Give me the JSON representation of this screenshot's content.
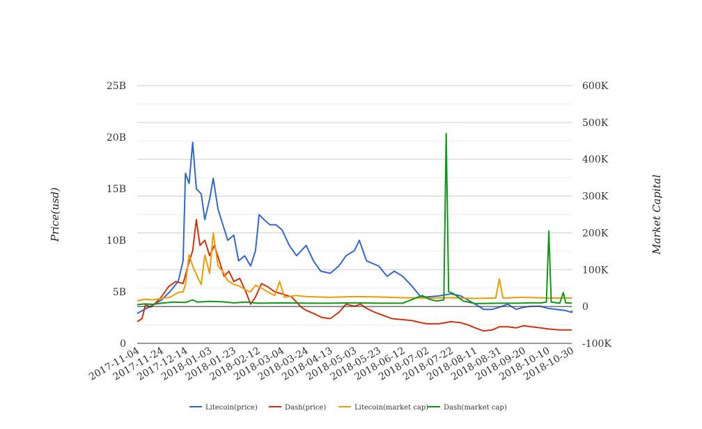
{
  "chart_data": {
    "type": "line",
    "title": "",
    "ylabel_left": "Price(usd)",
    "ylabel_right": "Market Capital",
    "x_tick_labels": [
      "2017-11-04",
      "2017-11-24",
      "2017-12-14",
      "2018-01-03",
      "2018-01-23",
      "2018-02-12",
      "2018-03-04",
      "2018-03-24",
      "2018-04-13",
      "2018-05-03",
      "2018-05-23",
      "2018-06-12",
      "2018-07-02",
      "2018-07-22",
      "2018-08-11",
      "2018-08-31",
      "2018-09-20",
      "2018-10-10",
      "2018-10-30"
    ],
    "x_range": [
      "2017-11-04",
      "2018-10-30"
    ],
    "y_left": {
      "ticks": [
        "0",
        "5B",
        "10B",
        "15B",
        "20B",
        "25B"
      ],
      "min": 0,
      "max": 25000000000
    },
    "y_right": {
      "ticks": [
        "-100K",
        "0",
        "100K",
        "200K",
        "300K",
        "400K",
        "500K",
        "600K"
      ],
      "min": -100000,
      "max": 600000
    },
    "grid": true,
    "legend_position": "bottom",
    "series": [
      {
        "name": "Litecoin(price)",
        "color": "#3366cc",
        "axis": "left",
        "points": [
          [
            "2017-11-04",
            2900000000.0
          ],
          [
            "2017-11-10",
            3300000000.0
          ],
          [
            "2017-11-17",
            3700000000.0
          ],
          [
            "2017-11-24",
            4200000000.0
          ],
          [
            "2017-12-01",
            5000000000.0
          ],
          [
            "2017-12-08",
            6000000000.0
          ],
          [
            "2017-12-12",
            8000000000.0
          ],
          [
            "2017-12-14",
            16500000000.0
          ],
          [
            "2017-12-17",
            15500000000.0
          ],
          [
            "2017-12-20",
            19500000000.0
          ],
          [
            "2017-12-23",
            15000000000.0
          ],
          [
            "2017-12-27",
            14500000000.0
          ],
          [
            "2017-12-30",
            12000000000.0
          ],
          [
            "2018-01-03",
            14000000000.0
          ],
          [
            "2018-01-06",
            16000000000.0
          ],
          [
            "2018-01-10",
            13000000000.0
          ],
          [
            "2018-01-14",
            11500000000.0
          ],
          [
            "2018-01-18",
            10000000000.0
          ],
          [
            "2018-01-23",
            10500000000.0
          ],
          [
            "2018-01-27",
            8000000000.0
          ],
          [
            "2018-02-01",
            8500000000.0
          ],
          [
            "2018-02-06",
            7500000000.0
          ],
          [
            "2018-02-10",
            9000000000.0
          ],
          [
            "2018-02-13",
            12500000000.0
          ],
          [
            "2018-02-17",
            12000000000.0
          ],
          [
            "2018-02-22",
            11500000000.0
          ],
          [
            "2018-02-27",
            11500000000.0
          ],
          [
            "2018-03-04",
            11000000000.0
          ],
          [
            "2018-03-10",
            9500000000.0
          ],
          [
            "2018-03-16",
            8500000000.0
          ],
          [
            "2018-03-24",
            9500000000.0
          ],
          [
            "2018-03-30",
            8000000000.0
          ],
          [
            "2018-04-05",
            7000000000.0
          ],
          [
            "2018-04-13",
            6800000000.0
          ],
          [
            "2018-04-20",
            7500000000.0
          ],
          [
            "2018-04-26",
            8500000000.0
          ],
          [
            "2018-05-03",
            9000000000.0
          ],
          [
            "2018-05-07",
            10000000000.0
          ],
          [
            "2018-05-13",
            8000000000.0
          ],
          [
            "2018-05-23",
            7500000000.0
          ],
          [
            "2018-05-30",
            6500000000.0
          ],
          [
            "2018-06-05",
            7000000000.0
          ],
          [
            "2018-06-12",
            6500000000.0
          ],
          [
            "2018-06-20",
            5500000000.0
          ],
          [
            "2018-06-27",
            4500000000.0
          ],
          [
            "2018-07-02",
            4500000000.0
          ],
          [
            "2018-07-12",
            4600000000.0
          ],
          [
            "2018-07-22",
            4800000000.0
          ],
          [
            "2018-07-30",
            4600000000.0
          ],
          [
            "2018-08-05",
            4200000000.0
          ],
          [
            "2018-08-11",
            3800000000.0
          ],
          [
            "2018-08-18",
            3300000000.0
          ],
          [
            "2018-08-25",
            3300000000.0
          ],
          [
            "2018-08-31",
            3500000000.0
          ],
          [
            "2018-09-07",
            3800000000.0
          ],
          [
            "2018-09-14",
            3300000000.0
          ],
          [
            "2018-09-20",
            3500000000.0
          ],
          [
            "2018-09-27",
            3600000000.0
          ],
          [
            "2018-10-04",
            3600000000.0
          ],
          [
            "2018-10-10",
            3400000000.0
          ],
          [
            "2018-10-17",
            3300000000.0
          ],
          [
            "2018-10-24",
            3200000000.0
          ],
          [
            "2018-10-30",
            3000000000.0
          ],
          [
            "2018-11-01",
            3200000000.0
          ]
        ]
      },
      {
        "name": "Dash(price)",
        "color": "#cc3311",
        "axis": "left",
        "points": [
          [
            "2017-11-04",
            2100000000.0
          ],
          [
            "2017-11-08",
            2400000000.0
          ],
          [
            "2017-11-11",
            3800000000.0
          ],
          [
            "2017-11-15",
            3500000000.0
          ],
          [
            "2017-11-20",
            4000000000.0
          ],
          [
            "2017-11-24",
            4500000000.0
          ],
          [
            "2017-11-30",
            5500000000.0
          ],
          [
            "2017-12-06",
            6000000000.0
          ],
          [
            "2017-12-12",
            5800000000.0
          ],
          [
            "2017-12-16",
            7500000000.0
          ],
          [
            "2017-12-20",
            9000000000.0
          ],
          [
            "2017-12-23",
            12000000000.0
          ],
          [
            "2017-12-26",
            9500000000.0
          ],
          [
            "2017-12-30",
            10000000000.0
          ],
          [
            "2018-01-03",
            8500000000.0
          ],
          [
            "2018-01-07",
            9500000000.0
          ],
          [
            "2018-01-11",
            8000000000.0
          ],
          [
            "2018-01-15",
            6500000000.0
          ],
          [
            "2018-01-19",
            7000000000.0
          ],
          [
            "2018-01-23",
            6000000000.0
          ],
          [
            "2018-01-28",
            6300000000.0
          ],
          [
            "2018-02-02",
            5000000000.0
          ],
          [
            "2018-02-06",
            3800000000.0
          ],
          [
            "2018-02-10",
            4500000000.0
          ],
          [
            "2018-02-15",
            5800000000.0
          ],
          [
            "2018-02-20",
            5500000000.0
          ],
          [
            "2018-02-26",
            5000000000.0
          ],
          [
            "2018-03-04",
            4800000000.0
          ],
          [
            "2018-03-12",
            4500000000.0
          ],
          [
            "2018-03-20",
            3500000000.0
          ],
          [
            "2018-03-24",
            3200000000.0
          ],
          [
            "2018-04-01",
            2800000000.0
          ],
          [
            "2018-04-06",
            2500000000.0
          ],
          [
            "2018-04-13",
            2400000000.0
          ],
          [
            "2018-04-20",
            3000000000.0
          ],
          [
            "2018-04-26",
            3800000000.0
          ],
          [
            "2018-05-03",
            3600000000.0
          ],
          [
            "2018-05-08",
            3800000000.0
          ],
          [
            "2018-05-13",
            3400000000.0
          ],
          [
            "2018-05-20",
            3000000000.0
          ],
          [
            "2018-05-27",
            2700000000.0
          ],
          [
            "2018-06-03",
            2400000000.0
          ],
          [
            "2018-06-12",
            2300000000.0
          ],
          [
            "2018-06-20",
            2200000000.0
          ],
          [
            "2018-06-27",
            2000000000.0
          ],
          [
            "2018-07-02",
            1900000000.0
          ],
          [
            "2018-07-12",
            1900000000.0
          ],
          [
            "2018-07-22",
            2100000000.0
          ],
          [
            "2018-07-30",
            2000000000.0
          ],
          [
            "2018-08-05",
            1800000000.0
          ],
          [
            "2018-08-11",
            1500000000.0
          ],
          [
            "2018-08-18",
            1200000000.0
          ],
          [
            "2018-08-25",
            1300000000.0
          ],
          [
            "2018-08-31",
            1600000000.0
          ],
          [
            "2018-09-07",
            1600000000.0
          ],
          [
            "2018-09-14",
            1500000000.0
          ],
          [
            "2018-09-20",
            1700000000.0
          ],
          [
            "2018-09-27",
            1600000000.0
          ],
          [
            "2018-10-04",
            1500000000.0
          ],
          [
            "2018-10-10",
            1400000000.0
          ],
          [
            "2018-10-20",
            1300000000.0
          ],
          [
            "2018-11-01",
            1300000000.0
          ]
        ]
      },
      {
        "name": "Litecoin(market cap)",
        "color": "#ee9a00",
        "axis": "right",
        "points": [
          [
            "2017-11-04",
            15000
          ],
          [
            "2017-11-10",
            20000
          ],
          [
            "2017-11-17",
            18000
          ],
          [
            "2017-11-24",
            22000
          ],
          [
            "2017-12-01",
            25000
          ],
          [
            "2017-12-08",
            38000
          ],
          [
            "2017-12-12",
            40000
          ],
          [
            "2017-12-14",
            60000
          ],
          [
            "2017-12-17",
            140000
          ],
          [
            "2017-12-20",
            110000
          ],
          [
            "2017-12-24",
            80000
          ],
          [
            "2017-12-27",
            60000
          ],
          [
            "2017-12-30",
            140000
          ],
          [
            "2018-01-03",
            90000
          ],
          [
            "2018-01-06",
            200000
          ],
          [
            "2018-01-10",
            110000
          ],
          [
            "2018-01-14",
            95000
          ],
          [
            "2018-01-18",
            70000
          ],
          [
            "2018-01-23",
            60000
          ],
          [
            "2018-01-28",
            55000
          ],
          [
            "2018-02-02",
            45000
          ],
          [
            "2018-02-06",
            40000
          ],
          [
            "2018-02-10",
            58000
          ],
          [
            "2018-02-15",
            50000
          ],
          [
            "2018-02-20",
            40000
          ],
          [
            "2018-02-26",
            30000
          ],
          [
            "2018-03-02",
            68000
          ],
          [
            "2018-03-06",
            25000
          ],
          [
            "2018-03-15",
            30000
          ],
          [
            "2018-03-24",
            27000
          ],
          [
            "2018-04-13",
            25000
          ],
          [
            "2018-05-03",
            27000
          ],
          [
            "2018-05-23",
            26000
          ],
          [
            "2018-06-12",
            24000
          ],
          [
            "2018-07-02",
            23000
          ],
          [
            "2018-07-22",
            24000
          ],
          [
            "2018-08-11",
            22000
          ],
          [
            "2018-08-28",
            23000
          ],
          [
            "2018-08-31",
            75000
          ],
          [
            "2018-09-03",
            23000
          ],
          [
            "2018-09-20",
            25000
          ],
          [
            "2018-10-10",
            23000
          ],
          [
            "2018-10-30",
            23000
          ],
          [
            "2018-11-01",
            23000
          ]
        ]
      },
      {
        "name": "Dash(market cap)",
        "color": "#109618",
        "axis": "right",
        "points": [
          [
            "2017-11-04",
            5000
          ],
          [
            "2017-11-10",
            7000
          ],
          [
            "2017-11-17",
            6000
          ],
          [
            "2017-11-24",
            9000
          ],
          [
            "2017-12-04",
            12000
          ],
          [
            "2017-12-14",
            11000
          ],
          [
            "2017-12-20",
            18000
          ],
          [
            "2017-12-24",
            12000
          ],
          [
            "2018-01-03",
            14000
          ],
          [
            "2018-01-13",
            13000
          ],
          [
            "2018-01-23",
            10000
          ],
          [
            "2018-02-02",
            12000
          ],
          [
            "2018-02-12",
            9000
          ],
          [
            "2018-03-04",
            10000
          ],
          [
            "2018-03-24",
            9000
          ],
          [
            "2018-04-13",
            9000
          ],
          [
            "2018-05-03",
            10000
          ],
          [
            "2018-05-23",
            9000
          ],
          [
            "2018-06-12",
            9000
          ],
          [
            "2018-06-28",
            30000
          ],
          [
            "2018-07-04",
            20000
          ],
          [
            "2018-07-10",
            15000
          ],
          [
            "2018-07-16",
            18000
          ],
          [
            "2018-07-18",
            470000
          ],
          [
            "2018-07-20",
            40000
          ],
          [
            "2018-07-24",
            35000
          ],
          [
            "2018-08-01",
            15000
          ],
          [
            "2018-08-11",
            8000
          ],
          [
            "2018-08-31",
            9000
          ],
          [
            "2018-09-15",
            9000
          ],
          [
            "2018-09-25",
            10000
          ],
          [
            "2018-10-05",
            10000
          ],
          [
            "2018-10-09",
            12000
          ],
          [
            "2018-10-11",
            205000
          ],
          [
            "2018-10-13",
            12000
          ],
          [
            "2018-10-20",
            9000
          ],
          [
            "2018-10-23",
            38000
          ],
          [
            "2018-10-25",
            10000
          ],
          [
            "2018-11-01",
            9000
          ]
        ]
      }
    ]
  }
}
